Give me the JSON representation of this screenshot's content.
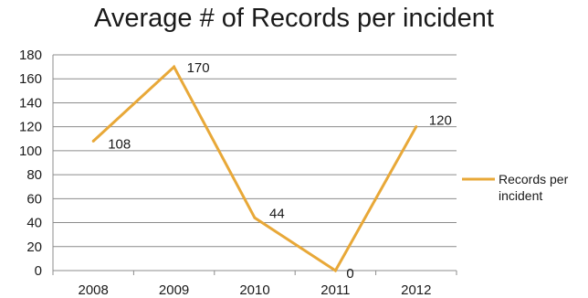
{
  "chart_data": {
    "type": "line",
    "title": "Average # of Records per incident",
    "xlabel": "",
    "ylabel": "",
    "categories": [
      "2008",
      "2009",
      "2010",
      "2011",
      "2012"
    ],
    "series": [
      {
        "name": "Records per incident",
        "values": [
          108,
          170,
          44,
          0,
          120
        ],
        "color": "#E8A838"
      }
    ],
    "data_labels": [
      "108",
      "170",
      "44",
      "0",
      "120"
    ],
    "ylim": [
      0,
      180
    ],
    "yticks": [
      0,
      20,
      40,
      60,
      80,
      100,
      120,
      140,
      160,
      180
    ],
    "grid": true,
    "legend_position": "right",
    "legend_lines": [
      "Records per",
      "incident"
    ]
  }
}
